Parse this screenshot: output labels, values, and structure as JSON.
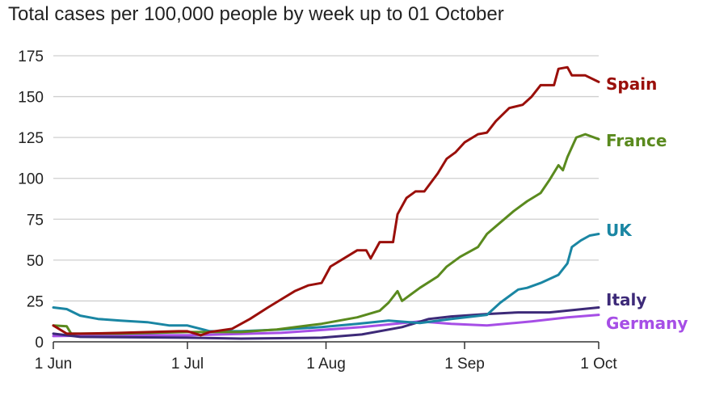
{
  "chart_data": {
    "type": "line",
    "title": "Total cases per 100,000 people by week up to 01 October",
    "xlabel": "",
    "ylabel": "",
    "ylim": [
      0,
      175
    ],
    "yticks": [
      "0",
      "25",
      "50",
      "75",
      "100",
      "125",
      "150",
      "175"
    ],
    "xlim": [
      "06-01",
      "10-01"
    ],
    "xticks": [
      {
        "date": "06-01",
        "label": "1 Jun"
      },
      {
        "date": "07-01",
        "label": "1 Jul"
      },
      {
        "date": "08-01",
        "label": "1 Aug"
      },
      {
        "date": "09-01",
        "label": "1 Sep"
      },
      {
        "date": "10-01",
        "label": "1 Oct"
      }
    ],
    "grid": "horizontal",
    "legend": "direct labels at line ends (right)",
    "series": [
      {
        "name": "Spain",
        "color": "#9a0f0a",
        "points": [
          [
            "06-01",
            10
          ],
          [
            "06-04",
            5
          ],
          [
            "06-07",
            5
          ],
          [
            "06-16",
            5.5
          ],
          [
            "06-29",
            6.5
          ],
          [
            "07-01",
            6.5
          ],
          [
            "07-04",
            4
          ],
          [
            "07-06",
            6
          ],
          [
            "07-11",
            8
          ],
          [
            "07-15",
            14
          ],
          [
            "07-19",
            21
          ],
          [
            "07-22",
            26
          ],
          [
            "07-25",
            31
          ],
          [
            "07-28",
            34.5
          ],
          [
            "07-31",
            36
          ],
          [
            "08-02",
            46
          ],
          [
            "08-05",
            51
          ],
          [
            "08-08",
            56
          ],
          [
            "08-10",
            56
          ],
          [
            "08-11",
            51
          ],
          [
            "08-13",
            61
          ],
          [
            "08-16",
            61
          ],
          [
            "08-17",
            78
          ],
          [
            "08-19",
            88
          ],
          [
            "08-21",
            92
          ],
          [
            "08-23",
            92
          ],
          [
            "08-26",
            103
          ],
          [
            "08-28",
            112
          ],
          [
            "08-30",
            116
          ],
          [
            "09-01",
            122
          ],
          [
            "09-04",
            127
          ],
          [
            "09-06",
            128
          ],
          [
            "09-08",
            135
          ],
          [
            "09-11",
            143
          ],
          [
            "09-14",
            145
          ],
          [
            "09-16",
            150
          ],
          [
            "09-18",
            157
          ],
          [
            "09-21",
            157
          ],
          [
            "09-22",
            167
          ],
          [
            "09-24",
            168
          ],
          [
            "09-25",
            163
          ],
          [
            "09-28",
            163
          ],
          [
            "10-01",
            159
          ]
        ]
      },
      {
        "name": "France",
        "color": "#5a8a1e",
        "points": [
          [
            "06-01",
            10
          ],
          [
            "06-04",
            9.5
          ],
          [
            "06-05",
            5
          ],
          [
            "06-16",
            5
          ],
          [
            "07-01",
            6
          ],
          [
            "07-13",
            6
          ],
          [
            "07-21",
            7.5
          ],
          [
            "07-28",
            10
          ],
          [
            "07-31",
            11
          ],
          [
            "08-08",
            15
          ],
          [
            "08-13",
            19
          ],
          [
            "08-15",
            24
          ],
          [
            "08-17",
            31
          ],
          [
            "08-18",
            25
          ],
          [
            "08-22",
            33
          ],
          [
            "08-26",
            40
          ],
          [
            "08-28",
            46
          ],
          [
            "08-31",
            52
          ],
          [
            "09-04",
            58
          ],
          [
            "09-06",
            66
          ],
          [
            "09-09",
            73
          ],
          [
            "09-12",
            80
          ],
          [
            "09-15",
            86
          ],
          [
            "09-18",
            91
          ],
          [
            "09-20",
            99
          ],
          [
            "09-22",
            108
          ],
          [
            "09-23",
            105
          ],
          [
            "09-24",
            113
          ],
          [
            "09-26",
            125
          ],
          [
            "09-28",
            127
          ],
          [
            "09-29",
            126
          ],
          [
            "10-01",
            124
          ]
        ]
      },
      {
        "name": "UK",
        "color": "#1a86a3",
        "points": [
          [
            "06-01",
            21
          ],
          [
            "06-04",
            20
          ],
          [
            "06-07",
            16
          ],
          [
            "06-11",
            14
          ],
          [
            "06-16",
            13
          ],
          [
            "06-22",
            12
          ],
          [
            "06-27",
            10
          ],
          [
            "07-01",
            10
          ],
          [
            "07-06",
            6.5
          ],
          [
            "07-13",
            6.5
          ],
          [
            "07-22",
            7.5
          ],
          [
            "07-31",
            9
          ],
          [
            "08-08",
            11
          ],
          [
            "08-15",
            13
          ],
          [
            "08-22",
            11.5
          ],
          [
            "08-29",
            14
          ],
          [
            "09-06",
            16.5
          ],
          [
            "09-09",
            24
          ],
          [
            "09-13",
            32
          ],
          [
            "09-15",
            33
          ],
          [
            "09-18",
            36
          ],
          [
            "09-22",
            41
          ],
          [
            "09-24",
            48
          ],
          [
            "09-25",
            58
          ],
          [
            "09-27",
            62
          ],
          [
            "09-29",
            65
          ],
          [
            "10-01",
            66
          ]
        ]
      },
      {
        "name": "Italy",
        "color": "#3d2a78",
        "points": [
          [
            "06-01",
            5
          ],
          [
            "06-07",
            3
          ],
          [
            "07-01",
            2.5
          ],
          [
            "07-13",
            2
          ],
          [
            "07-31",
            2.5
          ],
          [
            "08-09",
            4.5
          ],
          [
            "08-18",
            9
          ],
          [
            "08-24",
            14
          ],
          [
            "08-29",
            15.5
          ],
          [
            "09-06",
            17
          ],
          [
            "09-13",
            18
          ],
          [
            "09-20",
            18
          ],
          [
            "10-01",
            21
          ]
        ]
      },
      {
        "name": "Germany",
        "color": "#a64ee6",
        "points": [
          [
            "06-01",
            3.5
          ],
          [
            "06-16",
            4
          ],
          [
            "07-01",
            4
          ],
          [
            "07-22",
            5.5
          ],
          [
            "08-09",
            9
          ],
          [
            "08-22",
            12.5
          ],
          [
            "08-29",
            11
          ],
          [
            "09-06",
            10
          ],
          [
            "09-16",
            12.5
          ],
          [
            "09-24",
            15
          ],
          [
            "10-01",
            16.5
          ]
        ]
      }
    ]
  }
}
